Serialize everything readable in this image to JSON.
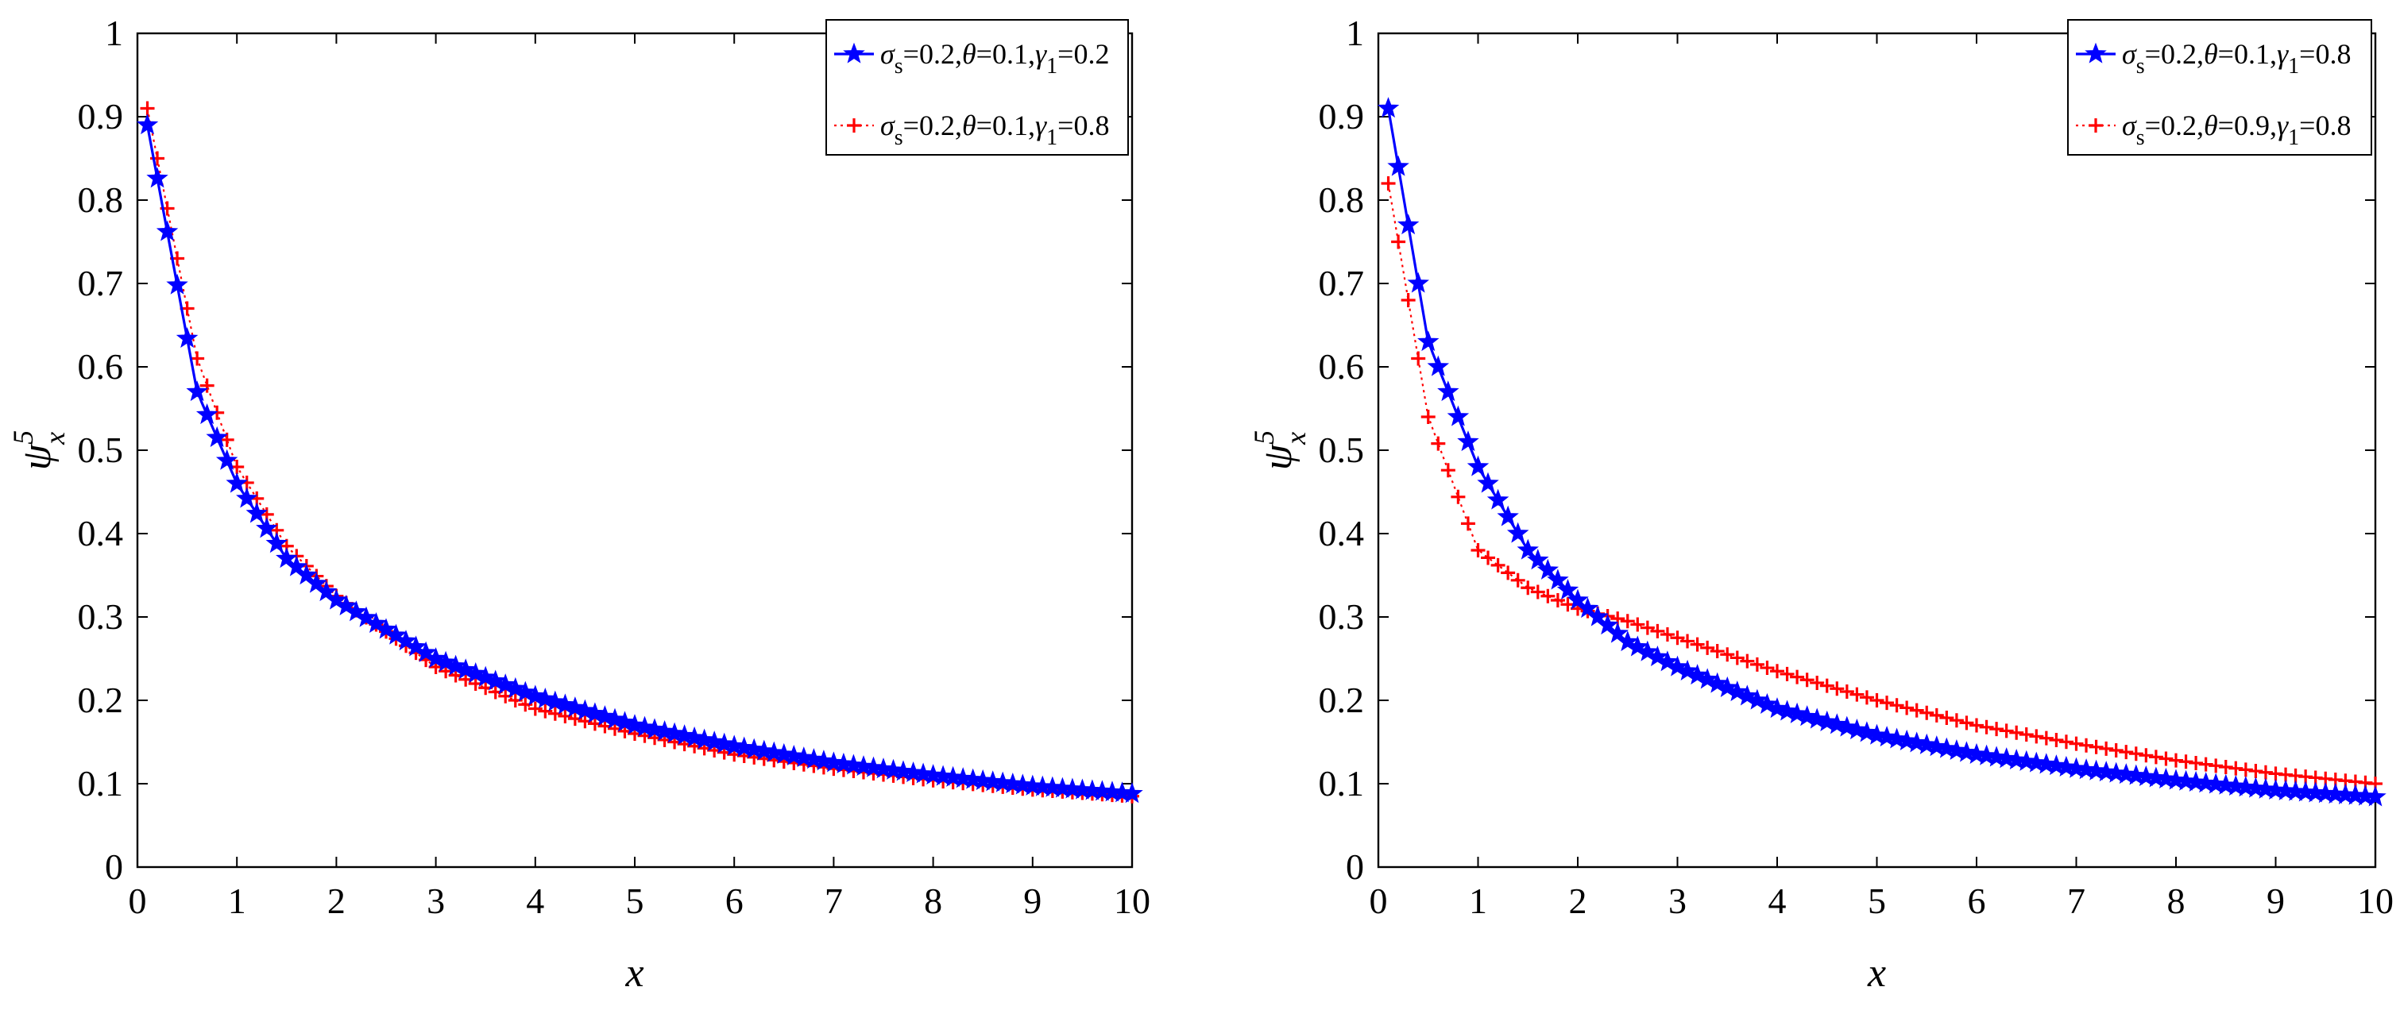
{
  "chart_data": [
    {
      "type": "line",
      "xlabel": "x",
      "ylabel": {
        "base": "ψ",
        "sup": "5",
        "sub": "x"
      },
      "xlim": [
        0,
        10
      ],
      "ylim": [
        0,
        1
      ],
      "xticks": [
        0,
        1,
        2,
        3,
        4,
        5,
        6,
        7,
        8,
        9,
        10
      ],
      "yticks": [
        0,
        0.1,
        0.2,
        0.3,
        0.4,
        0.5,
        0.6,
        0.7,
        0.8,
        0.9,
        1
      ],
      "grid": false,
      "legend_position": "top-right",
      "x": [
        0.1,
        0.6,
        1.0,
        1.5,
        2.0,
        3.0,
        4.0,
        5.0,
        6.0,
        7.0,
        8.0,
        9.0,
        10.0
      ],
      "series": [
        {
          "legend": {
            "parts": [
              [
                "σ",
                "italic"
              ],
              [
                "s",
                "sub"
              ],
              [
                "=0.2,",
                "normal"
              ],
              [
                "θ",
                "italic"
              ],
              [
                "=0.1,",
                "normal"
              ],
              [
                "γ",
                "italic"
              ],
              [
                "1",
                "sub"
              ],
              [
                "=0.2",
                "normal"
              ]
            ]
          },
          "color": "#0000ff",
          "marker": "star",
          "line": "solid",
          "values": [
            0.89,
            0.57,
            0.46,
            0.37,
            0.32,
            0.25,
            0.205,
            0.17,
            0.145,
            0.125,
            0.11,
            0.097,
            0.088
          ]
        },
        {
          "legend": {
            "parts": [
              [
                "σ",
                "italic"
              ],
              [
                "s",
                "sub"
              ],
              [
                "=0.2,",
                "normal"
              ],
              [
                "θ",
                "italic"
              ],
              [
                "=0.1,",
                "normal"
              ],
              [
                "γ",
                "italic"
              ],
              [
                "1",
                "sub"
              ],
              [
                "=0.8",
                "normal"
              ]
            ]
          },
          "color": "#ff0000",
          "marker": "plus",
          "line": "dotted",
          "values": [
            0.91,
            0.61,
            0.48,
            0.385,
            0.325,
            0.24,
            0.19,
            0.16,
            0.135,
            0.118,
            0.104,
            0.093,
            0.085
          ]
        }
      ]
    },
    {
      "type": "line",
      "xlabel": "x",
      "ylabel": {
        "base": "ψ",
        "sup": "5",
        "sub": "x"
      },
      "xlim": [
        0,
        10
      ],
      "ylim": [
        0,
        1
      ],
      "xticks": [
        0,
        1,
        2,
        3,
        4,
        5,
        6,
        7,
        8,
        9,
        10
      ],
      "yticks": [
        0,
        0.1,
        0.2,
        0.3,
        0.4,
        0.5,
        0.6,
        0.7,
        0.8,
        0.9,
        1
      ],
      "grid": false,
      "legend_position": "top-right",
      "x": [
        0.1,
        0.5,
        1.0,
        1.5,
        2.0,
        2.5,
        3.0,
        4.0,
        5.0,
        6.0,
        7.0,
        8.0,
        9.0,
        10.0
      ],
      "series": [
        {
          "legend": {
            "parts": [
              [
                "σ",
                "italic"
              ],
              [
                "s",
                "sub"
              ],
              [
                "=0.2,",
                "normal"
              ],
              [
                "θ",
                "italic"
              ],
              [
                "=0.1,",
                "normal"
              ],
              [
                "γ",
                "italic"
              ],
              [
                "1",
                "sub"
              ],
              [
                "=0.8",
                "normal"
              ]
            ]
          },
          "color": "#0000ff",
          "marker": "star",
          "line": "solid",
          "values": [
            0.91,
            0.63,
            0.48,
            0.38,
            0.32,
            0.27,
            0.24,
            0.19,
            0.158,
            0.135,
            0.118,
            0.104,
            0.092,
            0.084
          ]
        },
        {
          "legend": {
            "parts": [
              [
                "σ",
                "italic"
              ],
              [
                "s",
                "sub"
              ],
              [
                "=0.2,",
                "normal"
              ],
              [
                "θ",
                "italic"
              ],
              [
                "=0.9,",
                "normal"
              ],
              [
                "γ",
                "italic"
              ],
              [
                "1",
                "sub"
              ],
              [
                "=0.8",
                "normal"
              ]
            ]
          },
          "color": "#ff0000",
          "marker": "plus",
          "line": "dotted",
          "values": [
            0.82,
            0.54,
            0.38,
            0.335,
            0.31,
            0.295,
            0.275,
            0.235,
            0.2,
            0.17,
            0.148,
            0.128,
            0.112,
            0.1
          ]
        }
      ]
    }
  ]
}
